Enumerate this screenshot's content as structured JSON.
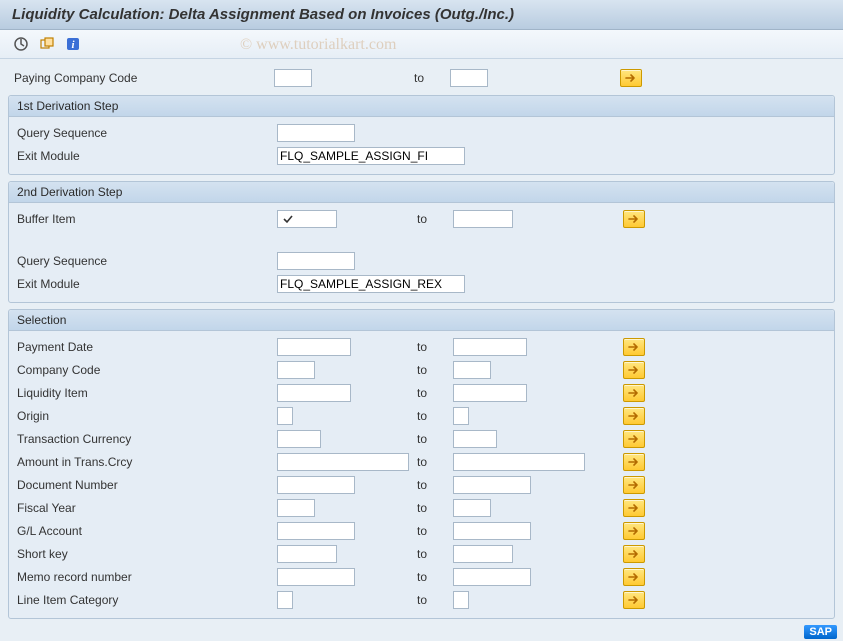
{
  "title": "Liquidity Calculation: Delta Assignment Based on Invoices (Outg./Inc.)",
  "watermark": "© www.tutorialkart.com",
  "top": {
    "paying_company_code_label": "Paying Company Code",
    "to_label": "to"
  },
  "group1": {
    "header": "1st Derivation Step",
    "query_sequence_label": "Query Sequence",
    "exit_module_label": "Exit Module",
    "exit_module_value": "FLQ_SAMPLE_ASSIGN_FI"
  },
  "group2": {
    "header": "2nd Derivation Step",
    "buffer_item_label": "Buffer Item",
    "to_label": "to",
    "query_sequence_label": "Query Sequence",
    "exit_module_label": "Exit Module",
    "exit_module_value": "FLQ_SAMPLE_ASSIGN_REX",
    "buffer_checked": true
  },
  "selection": {
    "header": "Selection",
    "to_label": "to",
    "rows": [
      {
        "label": "Payment Date",
        "w_from": 74,
        "w_to": 74
      },
      {
        "label": "Company Code",
        "w_from": 38,
        "w_to": 38
      },
      {
        "label": "Liquidity Item",
        "w_from": 74,
        "w_to": 74
      },
      {
        "label": "Origin",
        "w_from": 16,
        "w_to": 16
      },
      {
        "label": "Transaction Currency",
        "w_from": 44,
        "w_to": 44
      },
      {
        "label": "Amount in Trans.Crcy",
        "w_from": 132,
        "w_to": 132
      },
      {
        "label": "Document Number",
        "w_from": 78,
        "w_to": 78
      },
      {
        "label": "Fiscal Year",
        "w_from": 38,
        "w_to": 38
      },
      {
        "label": "G/L Account",
        "w_from": 78,
        "w_to": 78
      },
      {
        "label": "Short key",
        "w_from": 60,
        "w_to": 60
      },
      {
        "label": "Memo record number",
        "w_from": 78,
        "w_to": 78
      },
      {
        "label": "Line Item Category",
        "w_from": 16,
        "w_to": 16
      }
    ]
  },
  "colors": {
    "arrow_fill": "#d97700"
  },
  "layout": {
    "lbl_col_w": 260,
    "from_col_w": 140,
    "to_label_w": 36,
    "to_col_w": 140,
    "arrow_gap": 30
  }
}
